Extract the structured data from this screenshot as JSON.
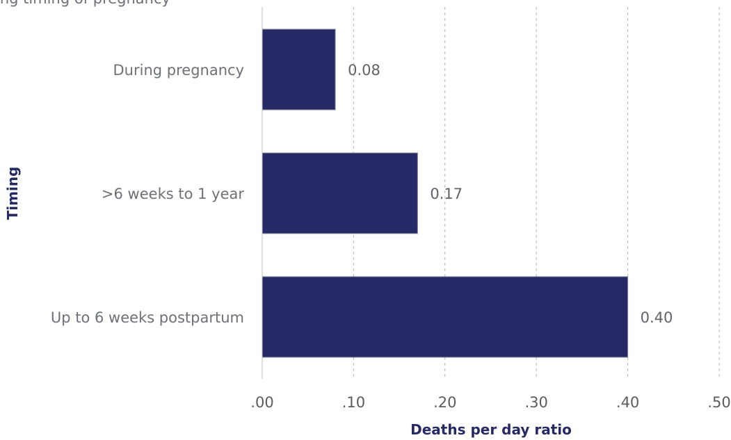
{
  "chart_data": {
    "type": "bar",
    "orientation": "horizontal",
    "title": "ing timing of pregnancy",
    "categories": [
      "During pregnancy",
      ">6 weeks to 1 year",
      "Up to 6 weeks postpartum"
    ],
    "values": [
      0.08,
      0.17,
      0.4
    ],
    "data_labels": [
      "0.08",
      "0.17",
      "0.40"
    ],
    "xlabel": "Deaths per day ratio",
    "ylabel": "Timing",
    "xlim": [
      0,
      0.5
    ],
    "x_ticks": [
      0,
      0.1,
      0.2,
      0.3,
      0.4,
      0.5
    ],
    "x_tick_labels": [
      ".00",
      ".10",
      ".20",
      ".30",
      ".40",
      ".50"
    ],
    "grid": "vertical dashed",
    "legend": "none",
    "colors": {
      "bar": "#252a66",
      "bar_edge": "#8a8c99",
      "grid": "#b5b5b5",
      "axis": "#bfbfbf",
      "axis_title": "#262a63"
    }
  }
}
